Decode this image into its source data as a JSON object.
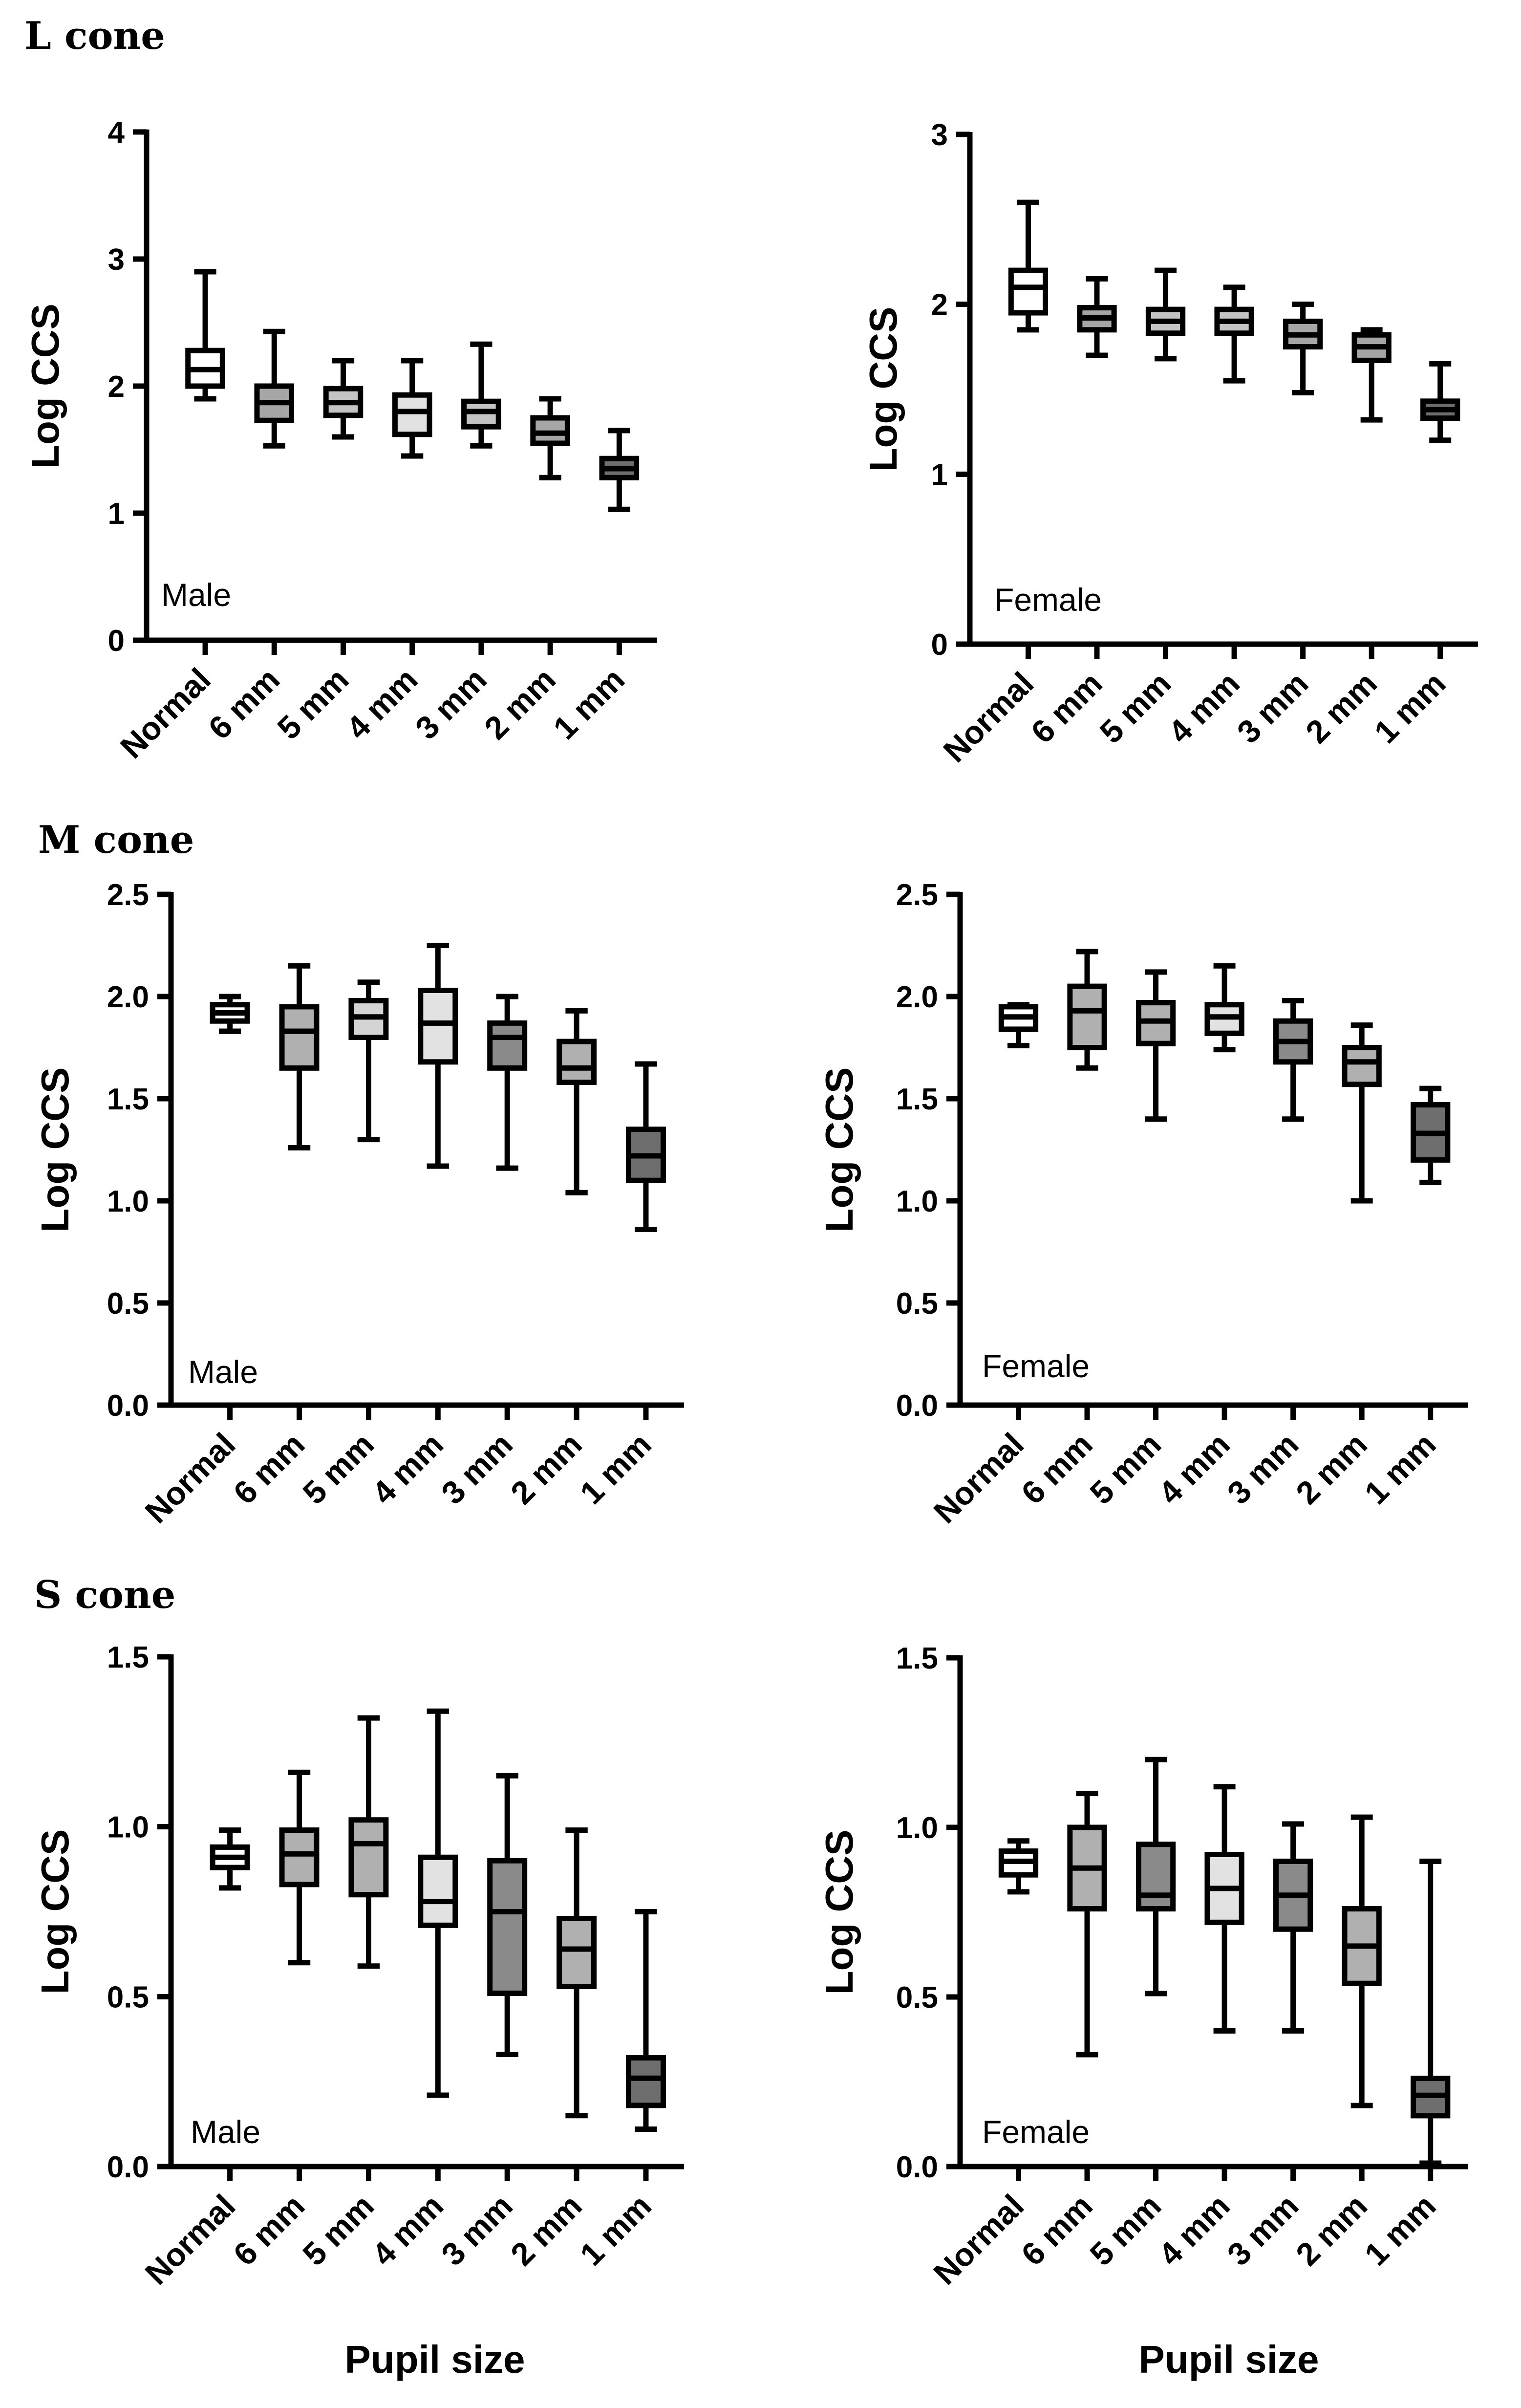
{
  "section_titles": [
    "L cone",
    "M cone",
    "S cone"
  ],
  "xlabel": "Pupil size",
  "chart_data": [
    {
      "type": "boxplot",
      "title": "L cone",
      "panel_label": "Male",
      "ylabel": "Log CCS",
      "ylim": [
        0,
        4
      ],
      "yticks": [
        "0",
        "1",
        "2",
        "3",
        "4"
      ],
      "categories": [
        "Normal",
        "6 mm",
        "5 mm",
        "4 mm",
        "3 mm",
        "2 mm",
        "1 mm"
      ],
      "colors": [
        "#ffffff",
        "#a6a6a6",
        "#c4c4c4",
        "#e2e2e2",
        "#c4c4c4",
        "#a6a6a6",
        "#6e6e6e"
      ],
      "boxes": [
        {
          "min": 1.9,
          "q1": 2.0,
          "median": 2.13,
          "q3": 2.28,
          "max": 2.9
        },
        {
          "min": 1.53,
          "q1": 1.73,
          "median": 1.87,
          "q3": 2.0,
          "max": 2.43
        },
        {
          "min": 1.6,
          "q1": 1.77,
          "median": 1.87,
          "q3": 1.98,
          "max": 2.2
        },
        {
          "min": 1.45,
          "q1": 1.62,
          "median": 1.8,
          "q3": 1.93,
          "max": 2.2
        },
        {
          "min": 1.53,
          "q1": 1.68,
          "median": 1.8,
          "q3": 1.88,
          "max": 2.33
        },
        {
          "min": 1.28,
          "q1": 1.55,
          "median": 1.63,
          "q3": 1.75,
          "max": 1.9
        },
        {
          "min": 1.03,
          "q1": 1.28,
          "median": 1.35,
          "q3": 1.43,
          "max": 1.65
        }
      ]
    },
    {
      "type": "boxplot",
      "title": "L cone",
      "panel_label": "Female",
      "ylabel": "Log CCS",
      "ylim": [
        0,
        3
      ],
      "yticks": [
        "0",
        "1",
        "2",
        "3"
      ],
      "categories": [
        "Normal",
        "6 mm",
        "5 mm",
        "4 mm",
        "3 mm",
        "2 mm",
        "1 mm"
      ],
      "colors": [
        "#ffffff",
        "#a6a6a6",
        "#c4c4c4",
        "#c4c4c4",
        "#a6a6a6",
        "#a6a6a6",
        "#6e6e6e"
      ],
      "boxes": [
        {
          "min": 1.85,
          "q1": 1.95,
          "median": 2.1,
          "q3": 2.2,
          "max": 2.6
        },
        {
          "min": 1.7,
          "q1": 1.85,
          "median": 1.92,
          "q3": 1.98,
          "max": 2.15
        },
        {
          "min": 1.68,
          "q1": 1.83,
          "median": 1.9,
          "q3": 1.97,
          "max": 2.2
        },
        {
          "min": 1.55,
          "q1": 1.83,
          "median": 1.9,
          "q3": 1.97,
          "max": 2.1
        },
        {
          "min": 1.48,
          "q1": 1.75,
          "median": 1.82,
          "q3": 1.9,
          "max": 2.0
        },
        {
          "min": 1.32,
          "q1": 1.67,
          "median": 1.75,
          "q3": 1.82,
          "max": 1.85
        },
        {
          "min": 1.2,
          "q1": 1.33,
          "median": 1.38,
          "q3": 1.43,
          "max": 1.65
        }
      ]
    },
    {
      "type": "boxplot",
      "title": "M cone",
      "panel_label": "Male",
      "ylabel": "Log CCS",
      "ylim": [
        0,
        2.5
      ],
      "yticks": [
        "0.0",
        "0.5",
        "1.0",
        "1.5",
        "2.0",
        "2.5"
      ],
      "categories": [
        "Normal",
        "6 mm",
        "5 mm",
        "4 mm",
        "3 mm",
        "2 mm",
        "1 mm"
      ],
      "colors": [
        "#ffffff",
        "#b0b0b0",
        "#d4d4d4",
        "#e2e2e2",
        "#8a8a8a",
        "#b0b0b0",
        "#6e6e6e"
      ],
      "boxes": [
        {
          "min": 1.83,
          "q1": 1.88,
          "median": 1.92,
          "q3": 1.96,
          "max": 2.0
        },
        {
          "min": 1.26,
          "q1": 1.65,
          "median": 1.83,
          "q3": 1.95,
          "max": 2.15
        },
        {
          "min": 1.3,
          "q1": 1.8,
          "median": 1.9,
          "q3": 1.98,
          "max": 2.07
        },
        {
          "min": 1.17,
          "q1": 1.68,
          "median": 1.87,
          "q3": 2.03,
          "max": 2.25
        },
        {
          "min": 1.16,
          "q1": 1.65,
          "median": 1.8,
          "q3": 1.87,
          "max": 2.0
        },
        {
          "min": 1.04,
          "q1": 1.58,
          "median": 1.65,
          "q3": 1.78,
          "max": 1.93
        },
        {
          "min": 0.86,
          "q1": 1.1,
          "median": 1.22,
          "q3": 1.35,
          "max": 1.67
        }
      ]
    },
    {
      "type": "boxplot",
      "title": "M cone",
      "panel_label": "Female",
      "ylabel": "Log CCS",
      "ylim": [
        0,
        2.5
      ],
      "yticks": [
        "0.0",
        "0.5",
        "1.0",
        "1.5",
        "2.0",
        "2.5"
      ],
      "categories": [
        "Normal",
        "6 mm",
        "5 mm",
        "4 mm",
        "3 mm",
        "2 mm",
        "1 mm"
      ],
      "colors": [
        "#ffffff",
        "#b0b0b0",
        "#b0b0b0",
        "#e2e2e2",
        "#8a8a8a",
        "#b0b0b0",
        "#6e6e6e"
      ],
      "boxes": [
        {
          "min": 1.76,
          "q1": 1.84,
          "median": 1.9,
          "q3": 1.95,
          "max": 1.96
        },
        {
          "min": 1.65,
          "q1": 1.75,
          "median": 1.93,
          "q3": 2.05,
          "max": 2.22
        },
        {
          "min": 1.4,
          "q1": 1.77,
          "median": 1.88,
          "q3": 1.97,
          "max": 2.12
        },
        {
          "min": 1.74,
          "q1": 1.82,
          "median": 1.9,
          "q3": 1.96,
          "max": 2.15
        },
        {
          "min": 1.4,
          "q1": 1.68,
          "median": 1.78,
          "q3": 1.88,
          "max": 1.98
        },
        {
          "min": 1.0,
          "q1": 1.57,
          "median": 1.68,
          "q3": 1.75,
          "max": 1.86
        },
        {
          "min": 1.09,
          "q1": 1.2,
          "median": 1.33,
          "q3": 1.47,
          "max": 1.55
        }
      ]
    },
    {
      "type": "boxplot",
      "title": "S cone",
      "panel_label": "Male",
      "ylabel": "Log CCS",
      "ylim": [
        0,
        1.5
      ],
      "yticks": [
        "0.0",
        "0.5",
        "1.0",
        "1.5"
      ],
      "categories": [
        "Normal",
        "6 mm",
        "5 mm",
        "4 mm",
        "3 mm",
        "2 mm",
        "1 mm"
      ],
      "colors": [
        "#ffffff",
        "#b0b0b0",
        "#b0b0b0",
        "#e2e2e2",
        "#8a8a8a",
        "#b0b0b0",
        "#6e6e6e"
      ],
      "boxes": [
        {
          "min": 0.82,
          "q1": 0.88,
          "median": 0.91,
          "q3": 0.94,
          "max": 0.99
        },
        {
          "min": 0.6,
          "q1": 0.83,
          "median": 0.92,
          "q3": 0.99,
          "max": 1.16
        },
        {
          "min": 0.59,
          "q1": 0.8,
          "median": 0.95,
          "q3": 1.02,
          "max": 1.32
        },
        {
          "min": 0.21,
          "q1": 0.71,
          "median": 0.78,
          "q3": 0.91,
          "max": 1.34
        },
        {
          "min": 0.33,
          "q1": 0.51,
          "median": 0.75,
          "q3": 0.9,
          "max": 1.15
        },
        {
          "min": 0.15,
          "q1": 0.53,
          "median": 0.64,
          "q3": 0.73,
          "max": 0.99
        },
        {
          "min": 0.11,
          "q1": 0.18,
          "median": 0.26,
          "q3": 0.32,
          "max": 0.75
        }
      ]
    },
    {
      "type": "boxplot",
      "title": "S cone",
      "panel_label": "Female",
      "ylabel": "Log CCS",
      "ylim": [
        0,
        1.5
      ],
      "yticks": [
        "0.0",
        "0.5",
        "1.0",
        "1.5"
      ],
      "categories": [
        "Normal",
        "6 mm",
        "5 mm",
        "4 mm",
        "3 mm",
        "2 mm",
        "1 mm"
      ],
      "colors": [
        "#ffffff",
        "#b0b0b0",
        "#8a8a8a",
        "#e2e2e2",
        "#8a8a8a",
        "#b0b0b0",
        "#6e6e6e"
      ],
      "boxes": [
        {
          "min": 0.81,
          "q1": 0.86,
          "median": 0.9,
          "q3": 0.93,
          "max": 0.96
        },
        {
          "min": 0.33,
          "q1": 0.76,
          "median": 0.88,
          "q3": 1.0,
          "max": 1.1
        },
        {
          "min": 0.51,
          "q1": 0.76,
          "median": 0.8,
          "q3": 0.95,
          "max": 1.2
        },
        {
          "min": 0.4,
          "q1": 0.72,
          "median": 0.82,
          "q3": 0.92,
          "max": 1.12
        },
        {
          "min": 0.4,
          "q1": 0.7,
          "median": 0.8,
          "q3": 0.9,
          "max": 1.01
        },
        {
          "min": 0.18,
          "q1": 0.54,
          "median": 0.65,
          "q3": 0.76,
          "max": 1.03
        },
        {
          "min": 0.01,
          "q1": 0.15,
          "median": 0.21,
          "q3": 0.26,
          "max": 0.9
        }
      ]
    }
  ]
}
